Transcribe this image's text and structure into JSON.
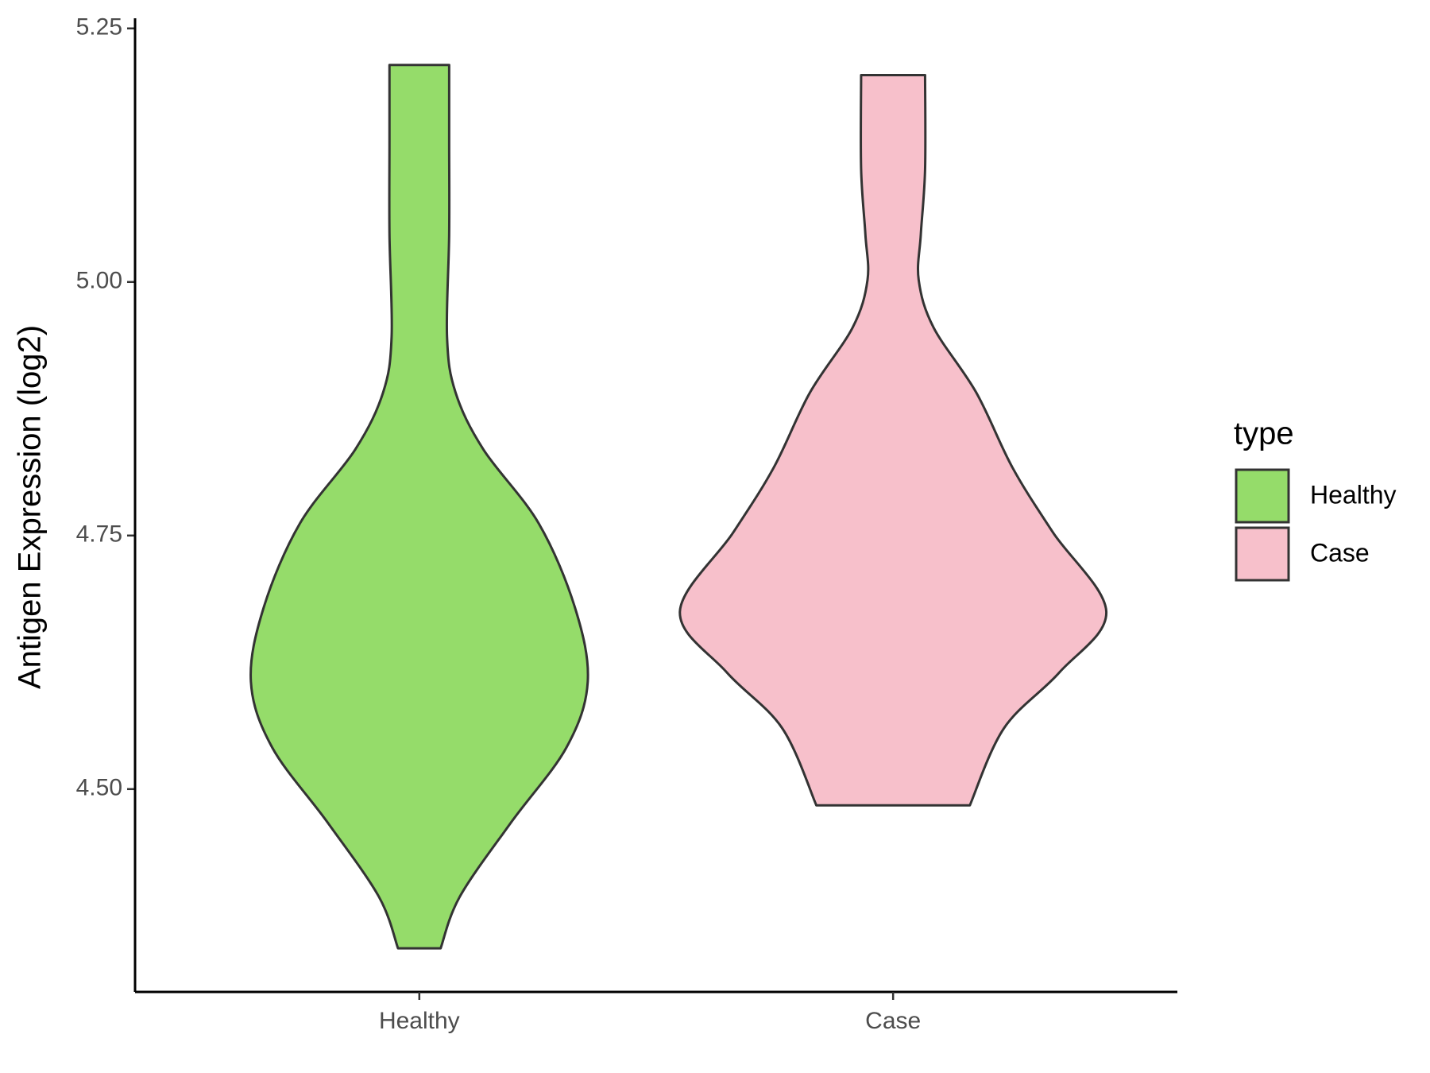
{
  "chart_data": {
    "type": "violin",
    "y_label": "Antigen Expression (log2)",
    "categories": [
      "Healthy",
      "Case"
    ],
    "series": [
      {
        "name": "Healthy",
        "color": "#95dc6a",
        "y": [
          5.214,
          5.139,
          5.047,
          4.946,
          4.891,
          4.835,
          4.762,
          4.679,
          4.606,
          4.541,
          4.467,
          4.394,
          4.343
        ],
        "width": [
          0.14,
          0.14,
          0.14,
          0.13,
          0.17,
          0.3,
          0.56,
          0.73,
          0.79,
          0.69,
          0.43,
          0.19,
          0.1
        ]
      },
      {
        "name": "Case",
        "color": "#f7c0cb",
        "y": [
          5.204,
          5.111,
          5.047,
          5.002,
          4.955,
          4.891,
          4.817,
          4.753,
          4.675,
          4.615,
          4.56,
          4.484
        ],
        "width": [
          0.15,
          0.15,
          0.13,
          0.12,
          0.19,
          0.39,
          0.56,
          0.75,
          1.0,
          0.78,
          0.52,
          0.36
        ]
      }
    ],
    "ylim": [
      4.3,
      5.26
    ],
    "yticks": [
      {
        "value": 4.5,
        "label": "4.50"
      },
      {
        "value": 4.75,
        "label": "4.75"
      },
      {
        "value": 5,
        "label": "5.00"
      },
      {
        "value": 5.25,
        "label": "5.25"
      }
    ],
    "legend_title": "type",
    "legend": "right"
  }
}
